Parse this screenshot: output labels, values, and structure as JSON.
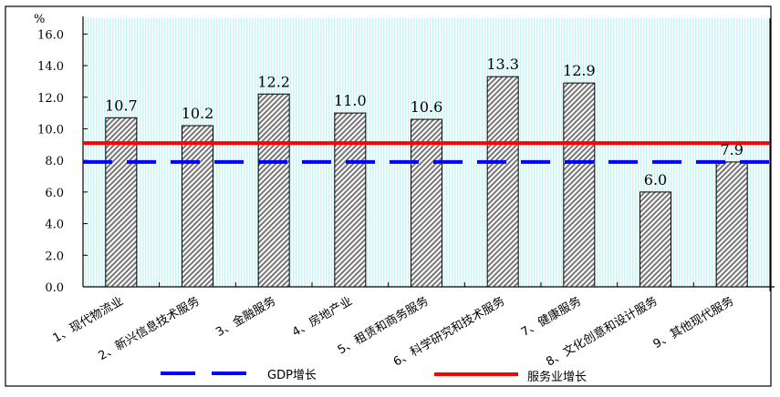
{
  "chart_data": {
    "type": "bar",
    "categories": [
      "1、现代物流业",
      "2、新兴信息技术服务",
      "3、金融服务",
      "4、房地产业",
      "5、租赁和商务服务",
      "6、科学研究和技术服务",
      "7、健康服务",
      "8、文化创意和设计服务",
      "9、其他现代服务"
    ],
    "values": [
      10.7,
      10.2,
      12.2,
      11.0,
      10.6,
      13.3,
      12.9,
      6.0,
      7.9
    ],
    "value_labels": [
      "10.7",
      "10.2",
      "12.2",
      "11.0",
      "10.6",
      "13.3",
      "12.9",
      "6.0",
      "7.9"
    ],
    "ylabel": "%",
    "ylim": [
      0,
      17
    ],
    "yticks": [
      "0.0",
      "2.0",
      "4.0",
      "6.0",
      "8.0",
      "10.0",
      "12.0",
      "14.0",
      "16.0"
    ],
    "reference_lines": [
      {
        "name": "GDP增长",
        "value": 7.9,
        "color": "#0000ff",
        "style": "dashed"
      },
      {
        "name": "服务业增长",
        "value": 9.1,
        "color": "#ff0000",
        "style": "solid"
      }
    ],
    "bar_fill": "hatched gray",
    "plot_background": "#e6ffff",
    "grid": false,
    "legend_position": "bottom"
  }
}
